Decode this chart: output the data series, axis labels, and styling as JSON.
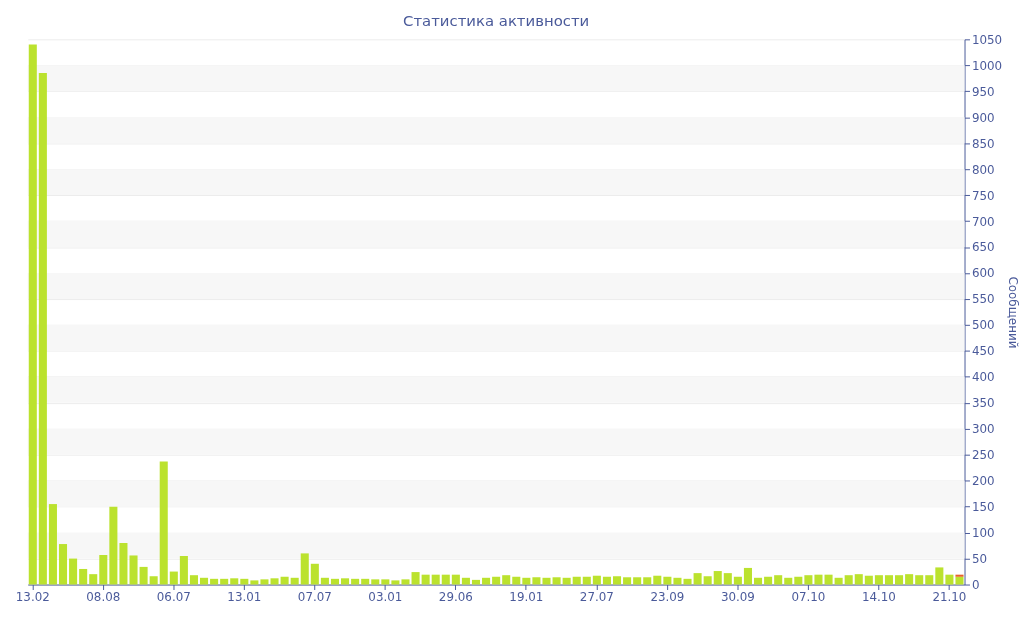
{
  "chart_data": {
    "type": "bar",
    "title": "Статистика активности",
    "ylabel": "Сообщений",
    "stacked": true,
    "grid": "y",
    "legend": false,
    "categories": [
      "13.02",
      null,
      null,
      null,
      null,
      null,
      null,
      "08.08",
      null,
      null,
      null,
      null,
      null,
      null,
      "06.07",
      null,
      null,
      null,
      null,
      null,
      null,
      "13.01",
      null,
      null,
      null,
      null,
      null,
      null,
      "07.07",
      null,
      null,
      null,
      null,
      null,
      null,
      "03.01",
      null,
      null,
      null,
      null,
      null,
      null,
      "29.06",
      null,
      null,
      null,
      null,
      null,
      null,
      "19.01",
      null,
      null,
      null,
      null,
      null,
      null,
      "27.07",
      null,
      null,
      null,
      null,
      null,
      null,
      "23.09",
      null,
      null,
      null,
      null,
      null,
      null,
      "30.09",
      null,
      null,
      null,
      null,
      null,
      null,
      "07.10",
      null,
      null,
      null,
      null,
      null,
      null,
      "14.10",
      null,
      null,
      null,
      null,
      null,
      null,
      "21.10",
      null
    ],
    "series": [
      {
        "color": "#bbe22e",
        "values": [
          1040,
          985,
          155,
          78,
          50,
          30,
          20,
          57,
          150,
          80,
          56,
          34,
          16,
          237,
          25,
          55,
          18,
          13,
          11,
          11,
          12,
          11,
          8,
          10,
          12,
          15,
          13,
          60,
          40,
          13,
          11,
          12,
          11,
          11,
          10,
          10,
          8,
          10,
          24,
          19,
          19,
          19,
          19,
          13,
          9,
          13,
          15,
          18,
          15,
          13,
          14,
          13,
          14,
          13,
          15,
          15,
          17,
          15,
          16,
          14,
          14,
          14,
          17,
          15,
          13,
          11,
          22,
          16,
          26,
          22,
          15,
          32,
          13,
          15,
          18,
          13,
          15,
          18,
          19,
          19,
          13,
          18,
          20,
          17,
          18,
          18,
          18,
          20,
          18,
          18,
          33,
          19,
          15
        ]
      },
      {
        "color": "#e8632a",
        "values": [
          null,
          null,
          null,
          null,
          null,
          null,
          null,
          null,
          null,
          null,
          null,
          null,
          null,
          null,
          null,
          null,
          null,
          null,
          null,
          null,
          null,
          null,
          null,
          null,
          null,
          null,
          null,
          null,
          null,
          null,
          null,
          null,
          null,
          null,
          null,
          null,
          null,
          null,
          null,
          null,
          null,
          null,
          null,
          null,
          null,
          null,
          null,
          null,
          null,
          null,
          null,
          null,
          null,
          null,
          null,
          null,
          null,
          null,
          null,
          null,
          null,
          null,
          null,
          null,
          null,
          null,
          null,
          null,
          null,
          null,
          null,
          null,
          null,
          null,
          null,
          null,
          null,
          null,
          null,
          null,
          null,
          null,
          null,
          null,
          null,
          null,
          null,
          null,
          null,
          null,
          null,
          null,
          4
        ]
      }
    ],
    "ylim": [
      0,
      1050
    ],
    "yticks": [
      0,
      50,
      100,
      150,
      200,
      250,
      300,
      350,
      400,
      450,
      500,
      550,
      600,
      650,
      700,
      750,
      800,
      850,
      900,
      950,
      1000,
      1050
    ]
  }
}
